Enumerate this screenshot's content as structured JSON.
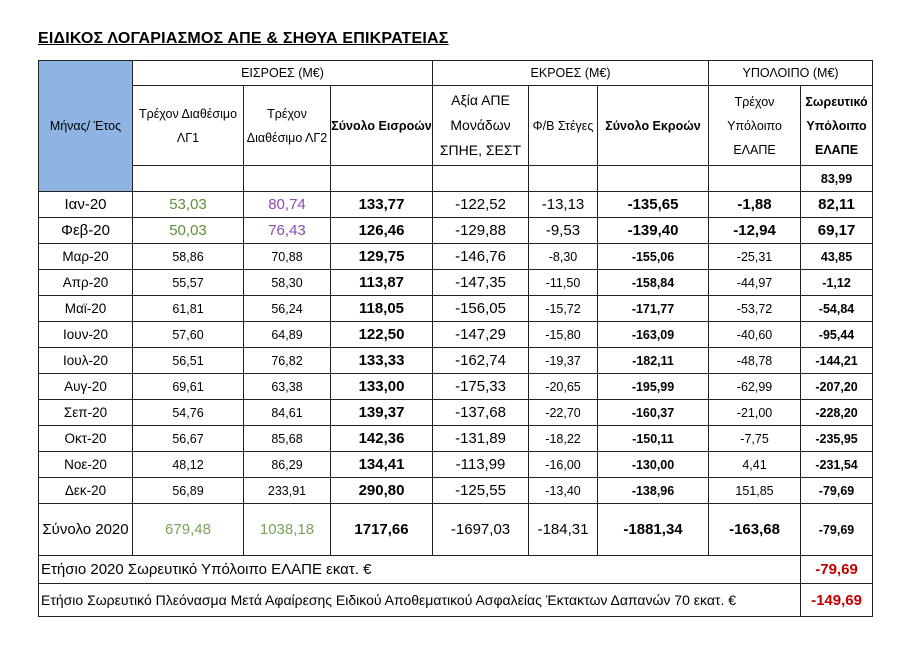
{
  "title": "ΕΙΔΙΚΟΣ ΛΟΓΑΡΙΑΣΜΟΣ ΑΠΕ & ΣΗΘΥΑ ΕΠΙΚΡΑΤΕΙΑΣ",
  "colors": {
    "header_blue": "#8db4e2",
    "green": "#5f8c3c",
    "purple": "#8a4bb0",
    "red": "#c00000"
  },
  "header": {
    "month_year": "Μήνας/ Έτος",
    "groups": [
      "ΕΙΣΡΟΕΣ (Μ€)",
      "ΕΚΡΟΕΣ (Μ€)",
      "ΥΠΟΛΟΙΠΟ (Μ€)"
    ],
    "columns": [
      "Τρέχον Διαθέσιμο ΛΓ1",
      "Τρέχον Διαθέσιμο ΛΓ2",
      "Σύνολο Εισροών",
      "Αξία ΑΠΕ Μονάδων ΣΠΗΕ, ΣΕΣΤ",
      "Φ/Β Στέγες",
      "Σύνολο Εκροών",
      "Τρέχον Υπόλοιπο ΕΛΑΠΕ",
      "Σωρευτικό Υπόλοιπο ΕΛΑΠΕ"
    ],
    "opening_balance": "83,99"
  },
  "rows": [
    [
      "Ιαν-20",
      "53,03",
      "80,74",
      "133,77",
      "-122,52",
      "-13,13",
      "-135,65",
      "-1,88",
      "82,11"
    ],
    [
      "Φεβ-20",
      "50,03",
      "76,43",
      "126,46",
      "-129,88",
      "-9,53",
      "-139,40",
      "-12,94",
      "69,17"
    ],
    [
      "Μαρ-20",
      "58,86",
      "70,88",
      "129,75",
      "-146,76",
      "-8,30",
      "-155,06",
      "-25,31",
      "43,85"
    ],
    [
      "Απρ-20",
      "55,57",
      "58,30",
      "113,87",
      "-147,35",
      "-11,50",
      "-158,84",
      "-44,97",
      "-1,12"
    ],
    [
      "Μαϊ-20",
      "61,81",
      "56,24",
      "118,05",
      "-156,05",
      "-15,72",
      "-171,77",
      "-53,72",
      "-54,84"
    ],
    [
      "Ιουν-20",
      "57,60",
      "64,89",
      "122,50",
      "-147,29",
      "-15,80",
      "-163,09",
      "-40,60",
      "-95,44"
    ],
    [
      "Ιουλ-20",
      "56,51",
      "76,82",
      "133,33",
      "-162,74",
      "-19,37",
      "-182,11",
      "-48,78",
      "-144,21"
    ],
    [
      "Αυγ-20",
      "69,61",
      "63,38",
      "133,00",
      "-175,33",
      "-20,65",
      "-195,99",
      "-62,99",
      "-207,20"
    ],
    [
      "Σεπ-20",
      "54,76",
      "84,61",
      "139,37",
      "-137,68",
      "-22,70",
      "-160,37",
      "-21,00",
      "-228,20"
    ],
    [
      "Οκτ-20",
      "56,67",
      "85,68",
      "142,36",
      "-131,89",
      "-18,22",
      "-150,11",
      "-7,75",
      "-235,95"
    ],
    [
      "Νοε-20",
      "48,12",
      "86,29",
      "134,41",
      "-113,99",
      "-16,00",
      "-130,00",
      "4,41",
      "-231,54"
    ],
    [
      "Δεκ-20",
      "56,89",
      "233,91",
      "290,80",
      "-125,55",
      "-13,40",
      "-138,96",
      "151,85",
      "-79,69"
    ]
  ],
  "total": [
    "Σύνολο 2020",
    "679,48",
    "1038,18",
    "1717,66",
    "-1697,03",
    "-184,31",
    "-1881,34",
    "-163,68",
    "-79,69"
  ],
  "annual_balance": {
    "label": "Ετήσιο 2020 Σωρευτικό Υπόλοιπο ΕΛΑΠΕ εκατ. €",
    "value": "-79,69"
  },
  "annual_surplus": {
    "label": "Ετήσιο Σωρευτικό Πλεόνασμα Μετά Αφαίρεσης  Ειδικού Αποθεματικού Ασφαλείας Έκτακτων Δαπανών 70 εκατ. €",
    "value": "-149,69"
  }
}
